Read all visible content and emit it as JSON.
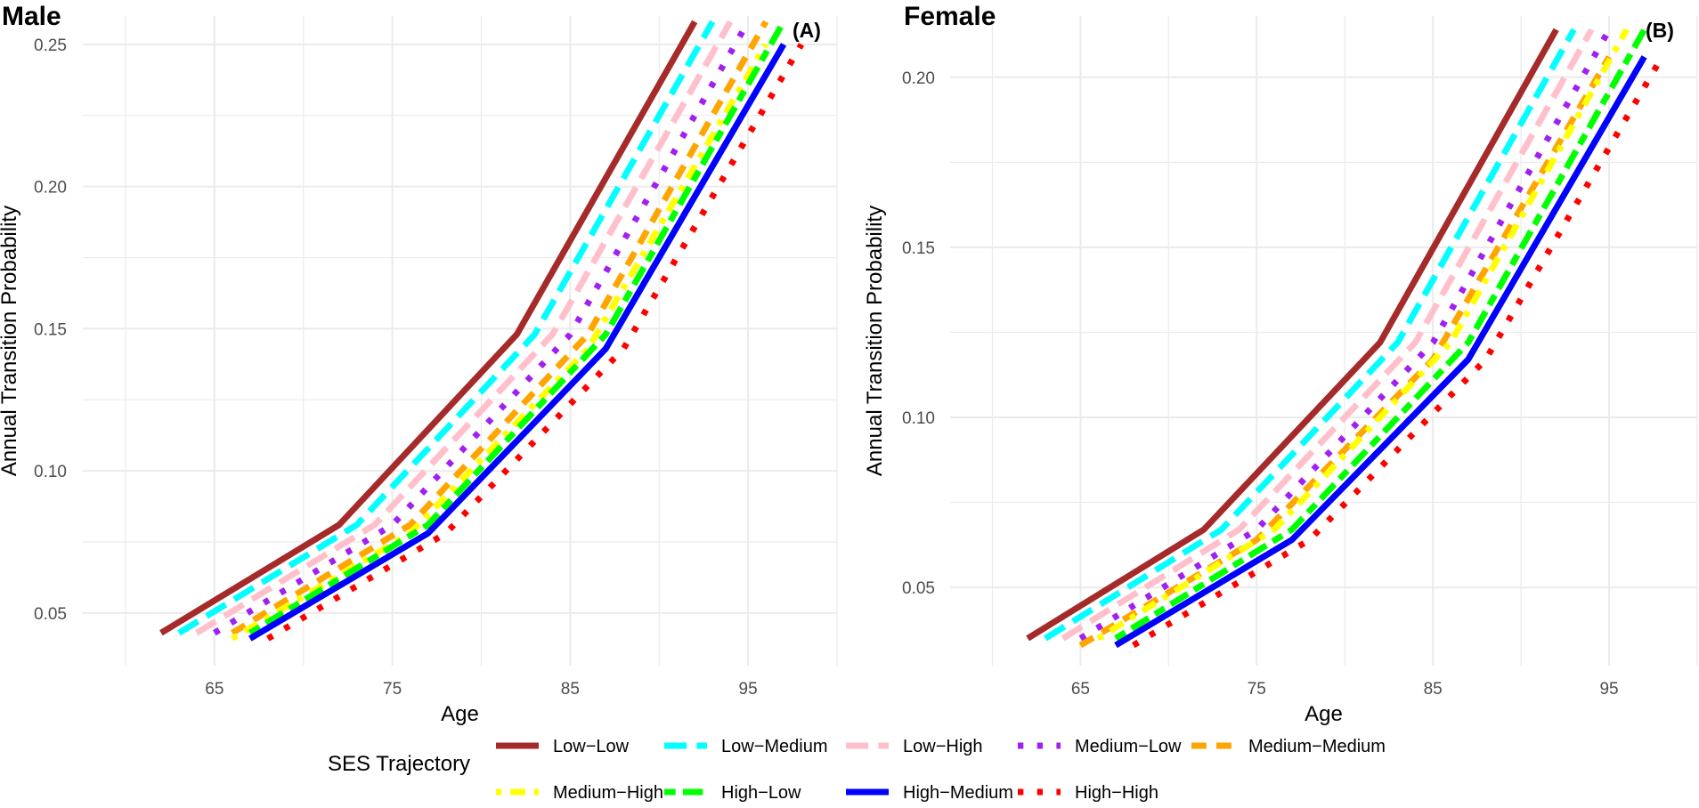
{
  "chart_data": [
    {
      "type": "line",
      "title": "Male",
      "panel_label": "(A)",
      "xlabel": "Age",
      "ylabel": "Annual Transition Probability",
      "xlim": [
        57.6,
        100.0
      ],
      "ylim": [
        0.0315,
        0.26
      ],
      "xticks": [
        65,
        75,
        85,
        95
      ],
      "xtick_labels": [
        "65",
        "75",
        "85",
        "95"
      ],
      "yticks": [
        0.05,
        0.1,
        0.15,
        0.2,
        0.25
      ],
      "ytick_labels": [
        "0.05",
        "0.10",
        "0.15",
        "0.20",
        "0.25"
      ],
      "series": [
        {
          "name": "Low−Low",
          "x": [
            62,
            72,
            82,
            92
          ],
          "y": [
            0.043,
            0.081,
            0.148,
            0.258
          ]
        },
        {
          "name": "Low−Medium",
          "x": [
            63,
            73,
            83,
            93
          ],
          "y": [
            0.043,
            0.081,
            0.148,
            0.258
          ]
        },
        {
          "name": "Low−High",
          "x": [
            64,
            74,
            84,
            94
          ],
          "y": [
            0.043,
            0.081,
            0.148,
            0.258
          ]
        },
        {
          "name": "Medium−Low",
          "x": [
            65,
            75,
            85,
            95
          ],
          "y": [
            0.043,
            0.081,
            0.148,
            0.258
          ]
        },
        {
          "name": "Medium−Medium",
          "x": [
            66,
            76,
            86,
            96
          ],
          "y": [
            0.043,
            0.081,
            0.148,
            0.258
          ]
        },
        {
          "name": "Medium−High",
          "x": [
            66,
            76,
            86,
            96
          ],
          "y": [
            0.041,
            0.078,
            0.143,
            0.25
          ]
        },
        {
          "name": "High−Low",
          "x": [
            67,
            77,
            87,
            97
          ],
          "y": [
            0.043,
            0.081,
            0.148,
            0.258
          ]
        },
        {
          "name": "High−Medium",
          "x": [
            67,
            77,
            87,
            97
          ],
          "y": [
            0.041,
            0.078,
            0.143,
            0.25
          ]
        },
        {
          "name": "High−High",
          "x": [
            68,
            78,
            88,
            98
          ],
          "y": [
            0.041,
            0.078,
            0.143,
            0.25
          ]
        }
      ]
    },
    {
      "type": "line",
      "title": "Female",
      "panel_label": "(B)",
      "xlabel": "Age",
      "ylabel": "Annual Transition Probability",
      "xlim": [
        57.6,
        100.0
      ],
      "ylim": [
        0.027,
        0.218
      ],
      "xticks": [
        65,
        75,
        85,
        95
      ],
      "xtick_labels": [
        "65",
        "75",
        "85",
        "95"
      ],
      "yticks": [
        0.05,
        0.1,
        0.15,
        0.2
      ],
      "ytick_labels": [
        "0.05",
        "0.10",
        "0.15",
        "0.20"
      ],
      "series": [
        {
          "name": "Low−Low",
          "x": [
            62,
            72,
            82,
            92
          ],
          "y": [
            0.035,
            0.067,
            0.122,
            0.214
          ]
        },
        {
          "name": "Low−Medium",
          "x": [
            63,
            73,
            83,
            93
          ],
          "y": [
            0.035,
            0.067,
            0.122,
            0.214
          ]
        },
        {
          "name": "Low−High",
          "x": [
            64,
            74,
            84,
            94
          ],
          "y": [
            0.035,
            0.067,
            0.122,
            0.214
          ]
        },
        {
          "name": "Medium−Low",
          "x": [
            65,
            75,
            85,
            95
          ],
          "y": [
            0.035,
            0.067,
            0.122,
            0.214
          ]
        },
        {
          "name": "Medium−Medium",
          "x": [
            65,
            75,
            85,
            95
          ],
          "y": [
            0.033,
            0.064,
            0.117,
            0.206
          ]
        },
        {
          "name": "Medium−High",
          "x": [
            66,
            76,
            86,
            96
          ],
          "y": [
            0.035,
            0.067,
            0.122,
            0.214
          ]
        },
        {
          "name": "High−Low",
          "x": [
            67,
            77,
            87,
            97
          ],
          "y": [
            0.035,
            0.067,
            0.122,
            0.214
          ]
        },
        {
          "name": "High−Medium",
          "x": [
            67,
            77,
            87,
            97
          ],
          "y": [
            0.033,
            0.064,
            0.117,
            0.206
          ]
        },
        {
          "name": "High−High",
          "x": [
            68,
            78,
            88,
            98
          ],
          "y": [
            0.033,
            0.064,
            0.117,
            0.206
          ]
        }
      ]
    }
  ],
  "legend": {
    "title": "SES Trajectory",
    "entries": [
      {
        "label": "Low−Low",
        "color": "#a52a2a",
        "dash": "solid"
      },
      {
        "label": "Low−Medium",
        "color": "#00ffff",
        "dash": "longdash"
      },
      {
        "label": "Low−High",
        "color": "#ffc0cb",
        "dash": "longdash"
      },
      {
        "label": "Medium−Low",
        "color": "#a020f0",
        "dash": "dotted"
      },
      {
        "label": "Medium−Medium",
        "color": "#ffa500",
        "dash": "dashed"
      },
      {
        "label": "Medium−High",
        "color": "#ffff00",
        "dash": "dotdash"
      },
      {
        "label": "High−Low",
        "color": "#00ff00",
        "dash": "twodash"
      },
      {
        "label": "High−Medium",
        "color": "#0000ff",
        "dash": "solid"
      },
      {
        "label": "High−High",
        "color": "#ff0000",
        "dash": "dotted"
      }
    ]
  },
  "colors": {
    "grid": "#ebebeb",
    "text": "#000000",
    "tick_text": "#4d4d4d",
    "background": "#ffffff"
  }
}
